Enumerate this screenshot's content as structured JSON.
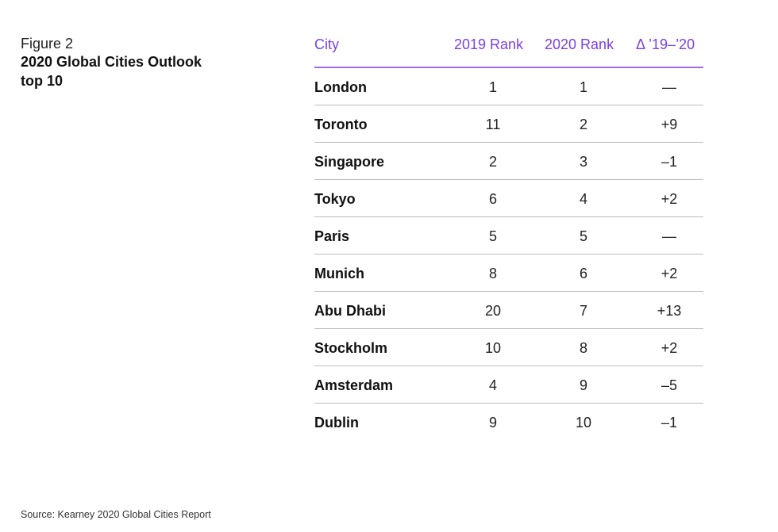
{
  "figure": {
    "label": "Figure 2",
    "title_line1": "2020 Global Cities Outlook",
    "title_line2": "top 10"
  },
  "source": "Source: Kearney 2020 Global Cities Report",
  "chart_data": {
    "type": "table",
    "columns": [
      "City",
      "2019 Rank",
      "2020 Rank",
      "Δ ’19–’20"
    ],
    "rows": [
      {
        "city": "London",
        "rank_2019": "1",
        "rank_2020": "1",
        "delta": "—"
      },
      {
        "city": "Toronto",
        "rank_2019": "11",
        "rank_2020": "2",
        "delta": "+9"
      },
      {
        "city": "Singapore",
        "rank_2019": "2",
        "rank_2020": "3",
        "delta": "–1"
      },
      {
        "city": "Tokyo",
        "rank_2019": "6",
        "rank_2020": "4",
        "delta": "+2"
      },
      {
        "city": "Paris",
        "rank_2019": "5",
        "rank_2020": "5",
        "delta": "—"
      },
      {
        "city": "Munich",
        "rank_2019": "8",
        "rank_2020": "6",
        "delta": "+2"
      },
      {
        "city": "Abu Dhabi",
        "rank_2019": "20",
        "rank_2020": "7",
        "delta": "+13"
      },
      {
        "city": "Stockholm",
        "rank_2019": "10",
        "rank_2020": "8",
        "delta": "+2"
      },
      {
        "city": "Amsterdam",
        "rank_2019": "4",
        "rank_2020": "9",
        "delta": "–5"
      },
      {
        "city": "Dublin",
        "rank_2019": "9",
        "rank_2020": "10",
        "delta": "–1"
      }
    ]
  }
}
